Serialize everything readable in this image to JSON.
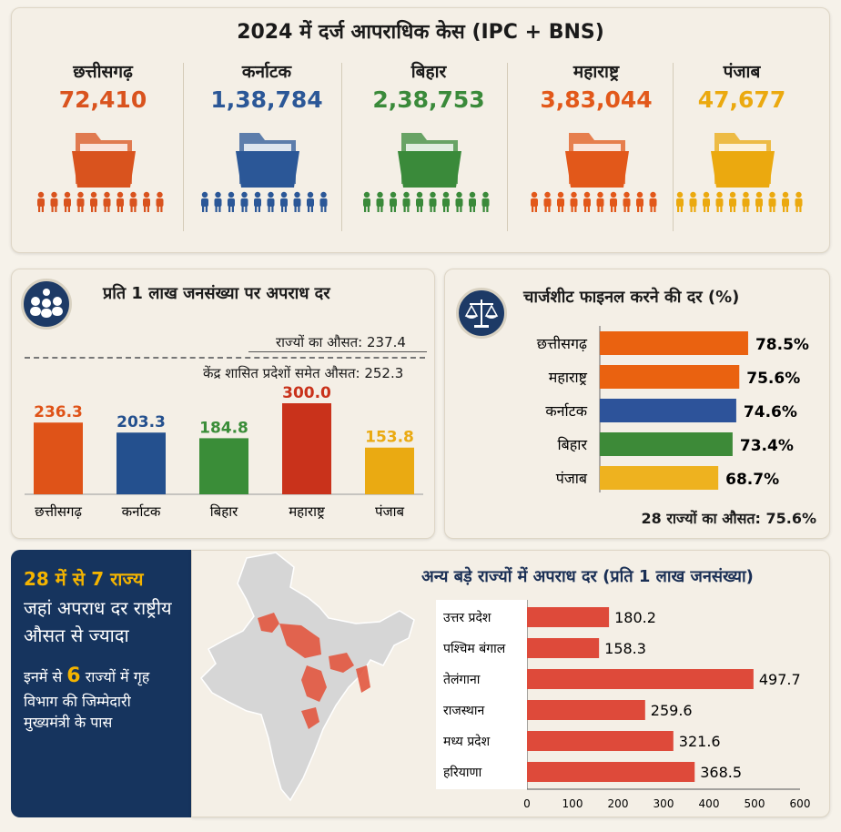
{
  "header": {
    "title": "2024 में दर्ज आपराधिक केस (IPC + BNS)"
  },
  "states": [
    {
      "name": "छत्तीसगढ़",
      "cases": "72,410",
      "color": "#d9531e"
    },
    {
      "name": "कर्नाटक",
      "cases": "1,38,784",
      "color": "#2b5797"
    },
    {
      "name": "बिहार",
      "cases": "2,38,753",
      "color": "#3a8a3a"
    },
    {
      "name": "महाराष्ट्र",
      "cases": "3,83,044",
      "color": "#e2581a"
    },
    {
      "name": "पंजाब",
      "cases": "47,677",
      "color": "#eba90f"
    }
  ],
  "crime_rate": {
    "title": "प्रति 1 लाख जनसंख्या पर अपराध दर",
    "avg_states_label": "राज्यों का औसत: 237.4",
    "avg_ut_label": "केंद्र शासित प्रदेशों समेत औसत: 252.3"
  },
  "chargesheet": {
    "title": "चार्जशीट फाइनल करने की दर (%)",
    "avg_label": "28 राज्यों का औसत: 75.6%"
  },
  "highlight": {
    "head": "28 में से 7 राज्य",
    "sub": "जहां अपराध दर राष्ट्रीय औसत से ज्यादा",
    "note_pre": "इनमें से ",
    "note_num": "6",
    "note_post": " राज्यों में गृह विभाग की जिम्मेदारी मुख्यमंत्री के पास"
  },
  "other_states": {
    "title": "अन्य बड़े राज्यों में अपराध दर (प्रति 1 लाख जनसंख्या)"
  },
  "chart_data": [
    {
      "type": "bar",
      "categories": [
        "छत्तीसगढ़",
        "कर्नाटक",
        "बिहार",
        "महाराष्ट्र",
        "पंजाब"
      ],
      "values": [
        236.3,
        203.3,
        184.8,
        300.0,
        153.8
      ],
      "value_labels": [
        "236.3",
        "203.3",
        "184.8",
        "300.0",
        "153.8"
      ],
      "colors": [
        "#df5318",
        "#24508e",
        "#3a8d38",
        "#c9321b",
        "#eaaa12"
      ],
      "ylim": [
        0,
        300
      ]
    },
    {
      "type": "bar",
      "orientation": "horizontal",
      "categories": [
        "छत्तीसगढ़",
        "महाराष्ट्र",
        "कर्नाटक",
        "बिहार",
        "पंजाब"
      ],
      "values": [
        78.5,
        75.6,
        74.6,
        73.4,
        68.7
      ],
      "value_labels": [
        "78.5%",
        "75.6%",
        "74.6%",
        "73.4%",
        "68.7%"
      ],
      "colors": [
        "#ea6210",
        "#ea6210",
        "#2d539a",
        "#3d8a38",
        "#eeb21f"
      ]
    },
    {
      "type": "bar",
      "orientation": "horizontal",
      "categories": [
        "उत्तर प्रदेश",
        "पश्चिम बंगाल",
        "तेलंगाना",
        "राजस्थान",
        "मध्य प्रदेश",
        "हरियाणा"
      ],
      "values": [
        180.2,
        158.3,
        497.7,
        259.6,
        321.6,
        368.5
      ],
      "value_labels": [
        "180.2",
        "158.3",
        "497.7",
        "259.6",
        "321.6",
        "368.5"
      ],
      "color": "#de4a3a",
      "xticks": [
        0,
        100,
        200,
        300,
        400,
        500,
        600
      ],
      "xlim": [
        0,
        600
      ]
    }
  ]
}
